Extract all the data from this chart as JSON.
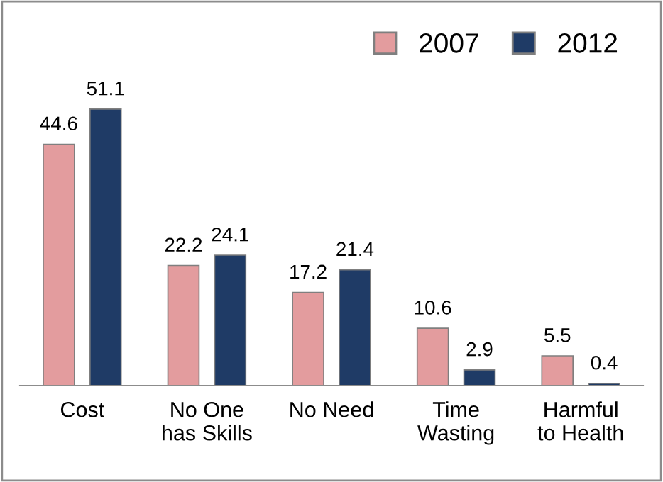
{
  "chart_data": {
    "type": "bar",
    "categories": [
      "Cost",
      "No One\nhas Skills",
      "No Need",
      "Time\nWasting",
      "Harmful\nto Health"
    ],
    "series": [
      {
        "name": "2007",
        "color": "#e39c9e",
        "values": [
          44.6,
          22.2,
          17.2,
          10.6,
          5.5
        ]
      },
      {
        "name": "2012",
        "color": "#1f3b66",
        "values": [
          51.1,
          24.1,
          21.4,
          2.9,
          0.4
        ]
      }
    ],
    "data_labels": true,
    "legend": "top right",
    "grid": false
  }
}
